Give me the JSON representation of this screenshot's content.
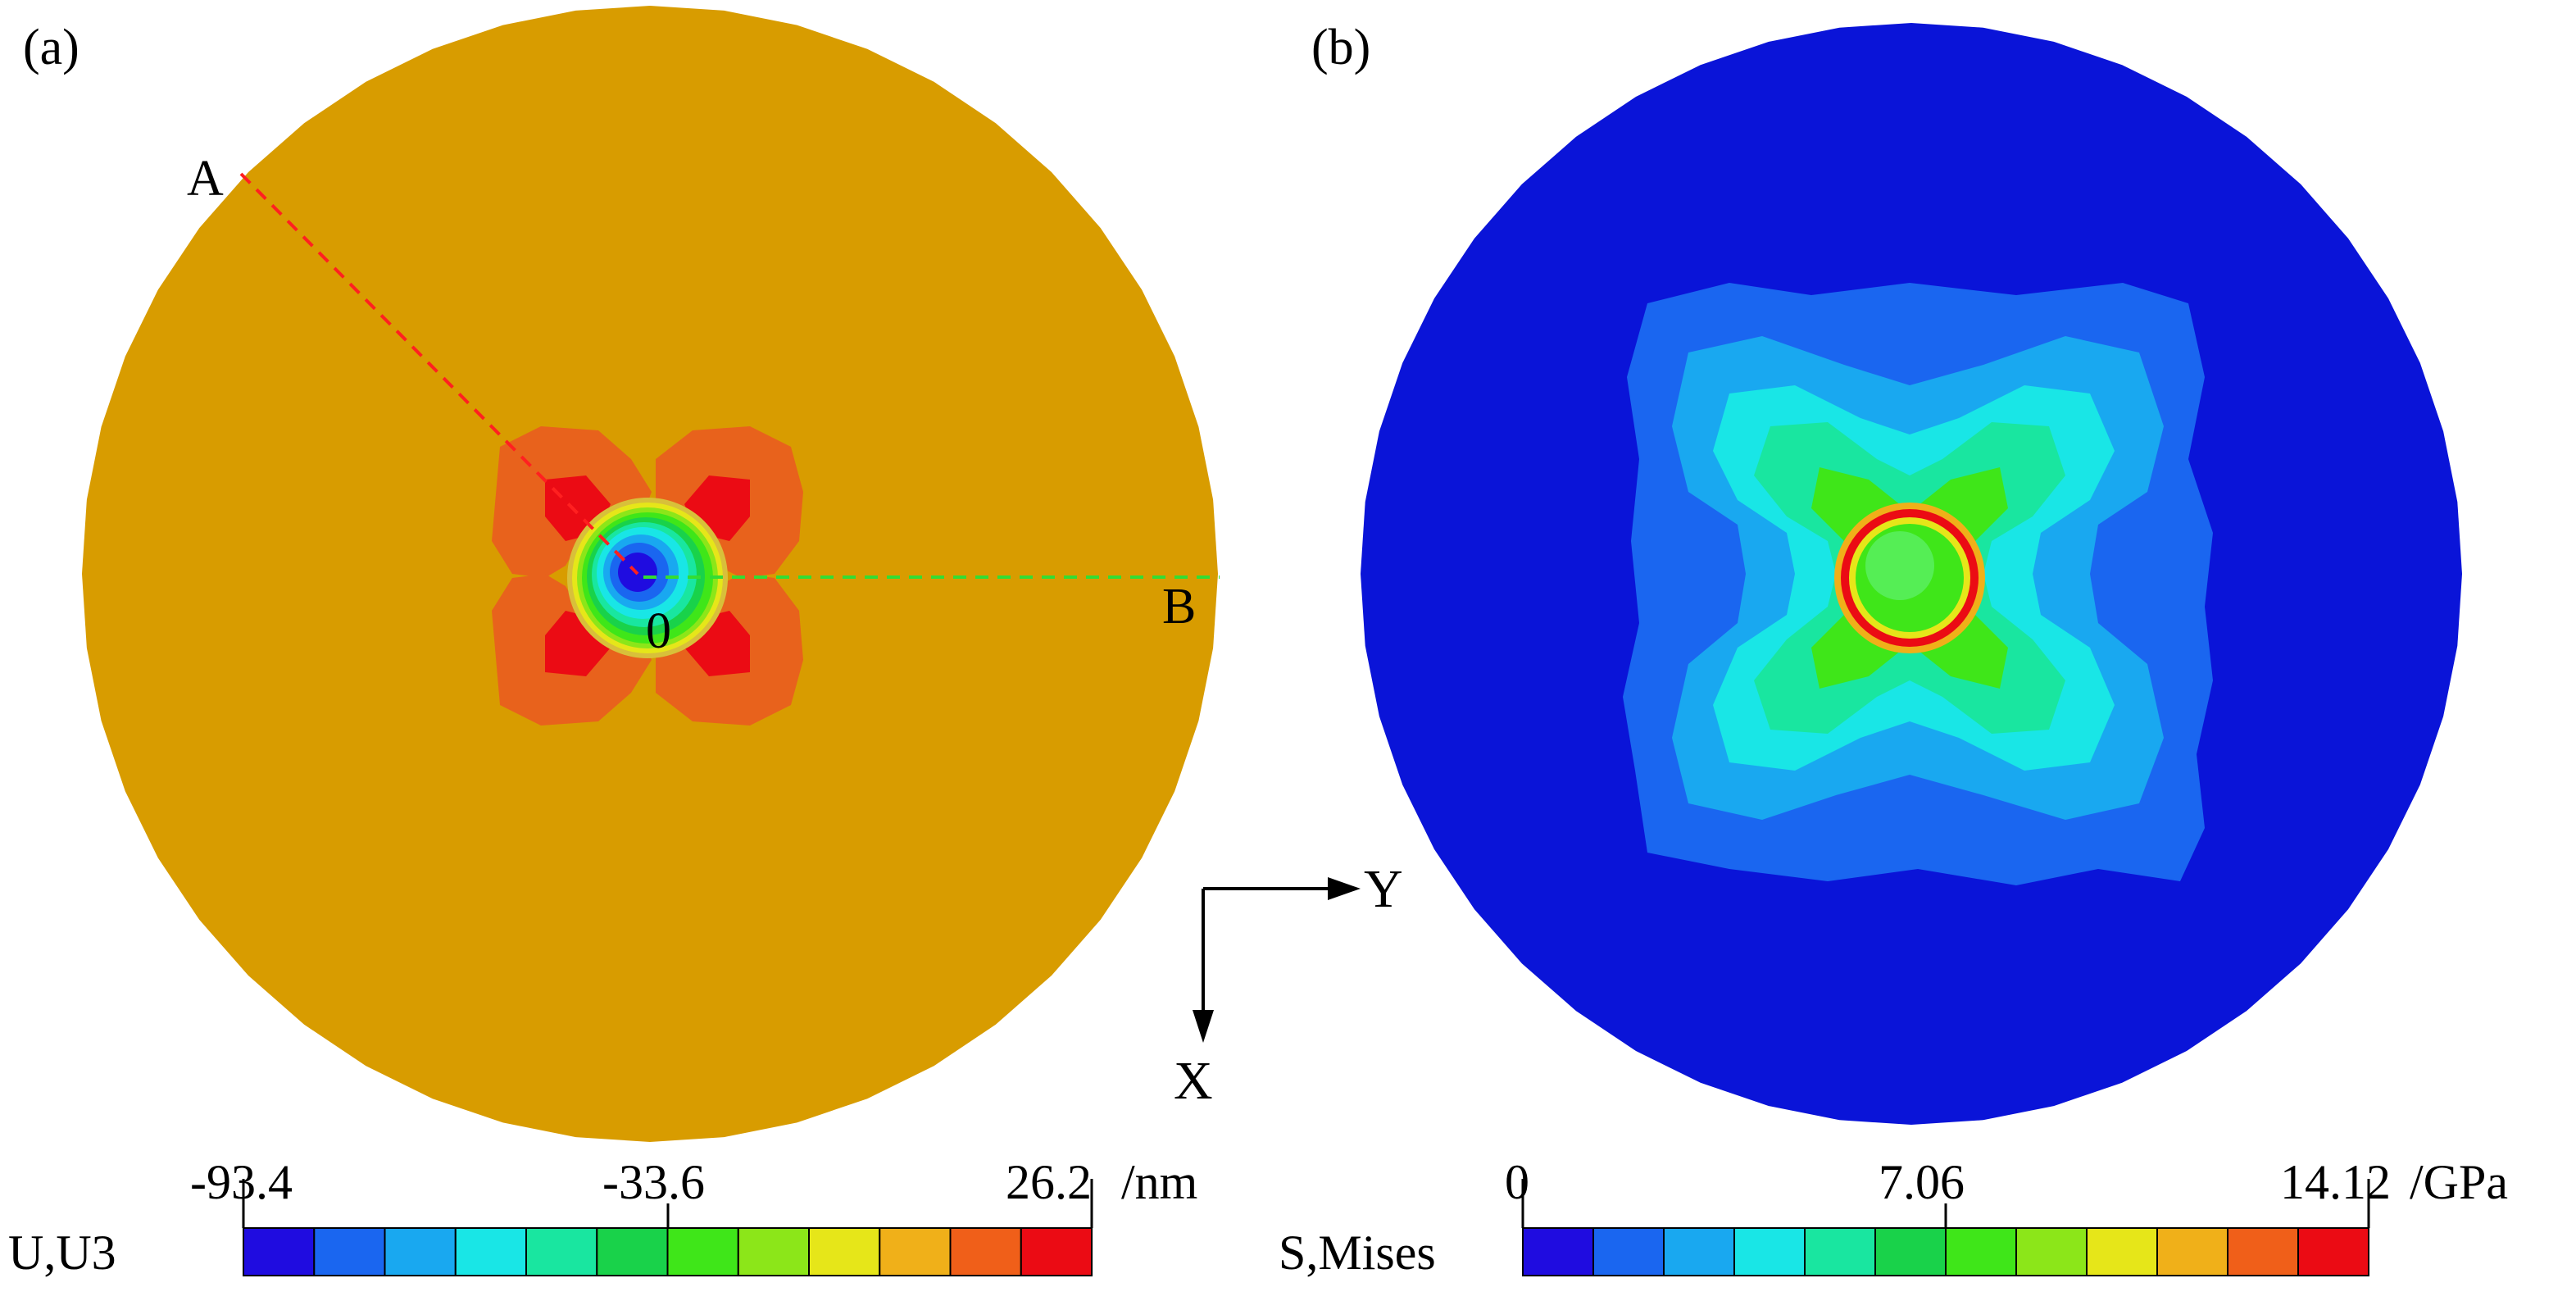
{
  "panels": {
    "a": {
      "label": "(a)",
      "point_a_label": "A",
      "point_b_label": "B",
      "origin_label": "0",
      "field_color": "#D89C00",
      "colorbar": {
        "variable": "U,U3",
        "min_label": "-93.4",
        "mid_label": "-33.6",
        "max_label": "26.2",
        "unit": "/nm",
        "colors": [
          "#1F0CE0",
          "#1A66F0",
          "#19A8F0",
          "#19E6E6",
          "#19E6A0",
          "#19D24A",
          "#3FE619",
          "#8CE619",
          "#E6E619",
          "#F0B019",
          "#F05F19",
          "#EB0B14"
        ]
      }
    },
    "b": {
      "label": "(b)",
      "field_color": "#0A14D8",
      "colorbar": {
        "variable": "S,Mises",
        "min_label": "0",
        "mid_label": "7.06",
        "max_label": "14.12",
        "unit": "/GPa",
        "colors": [
          "#1F0CE0",
          "#1A66F0",
          "#19A8F0",
          "#19E6E6",
          "#19E6A0",
          "#19D24A",
          "#3FE619",
          "#8CE619",
          "#E6E619",
          "#F0B019",
          "#F05F19",
          "#EB0B14"
        ]
      }
    }
  },
  "axes": {
    "y_label": "Y",
    "x_label": "X"
  }
}
